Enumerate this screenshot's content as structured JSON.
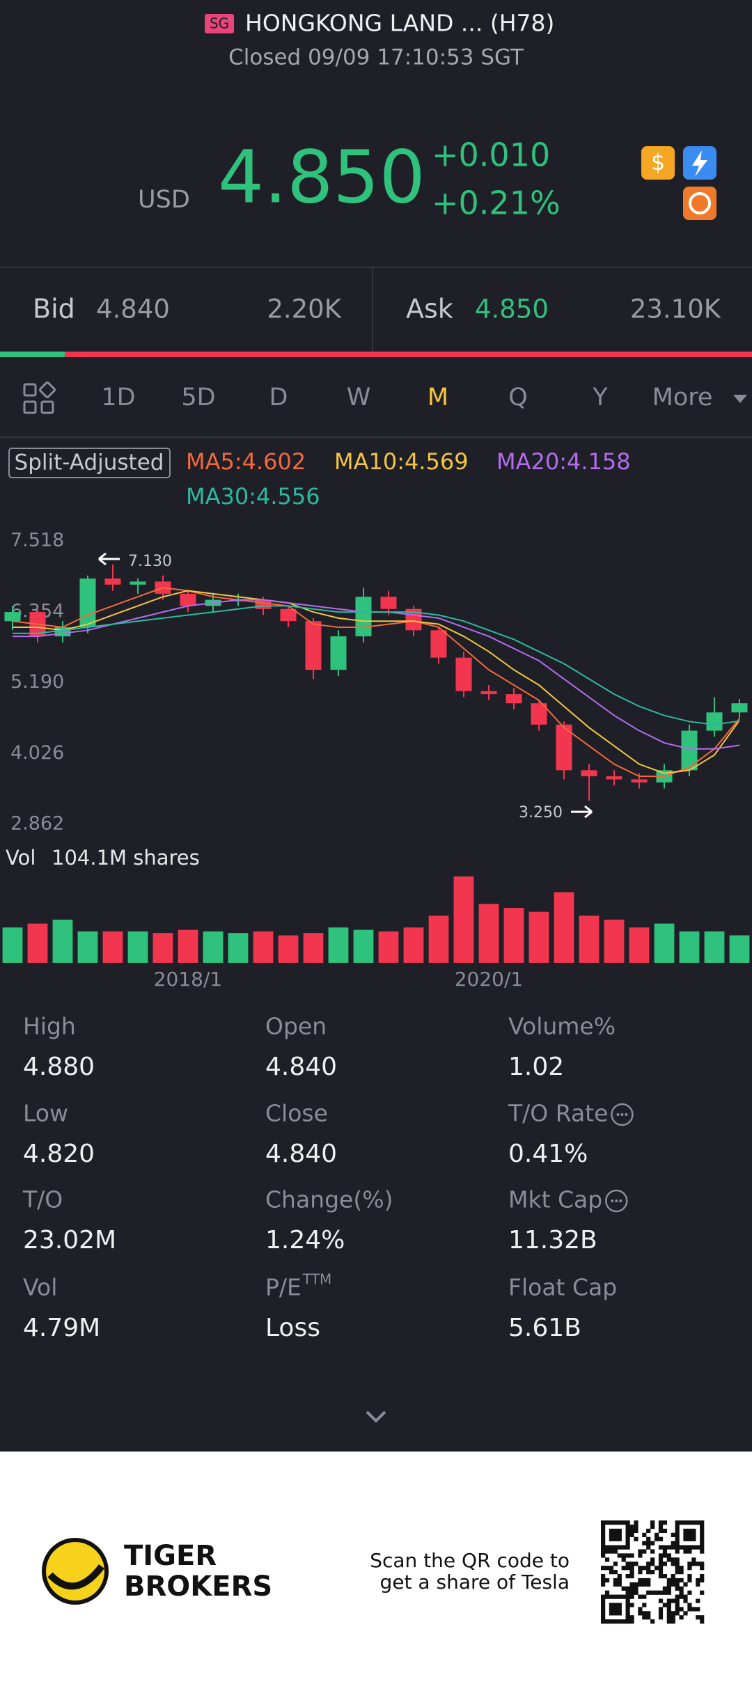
{
  "header": {
    "badge": "SG",
    "title": "HONGKONG LAND ... (H78)",
    "status": "Closed 09/09 17:10:53 SGT"
  },
  "quote": {
    "currency": "USD",
    "price": "4.850",
    "change": "+0.010",
    "change_pct": "+0.21%"
  },
  "bid_ask": {
    "bid_label": "Bid",
    "bid_price": "4.840",
    "bid_size": "2.20K",
    "ask_label": "Ask",
    "ask_price": "4.850",
    "ask_size": "23.10K"
  },
  "tabs": [
    "1D",
    "5D",
    "D",
    "W",
    "M",
    "Q",
    "Y",
    "More"
  ],
  "active_tab": 4,
  "chart_data": {
    "type": "candlestick",
    "adjust_label": "Split-Adjusted",
    "up_color": "#2fc27c",
    "down_color": "#f2364f",
    "categories": [
      null,
      null,
      null,
      null,
      null,
      null,
      null,
      "2018/1",
      null,
      null,
      null,
      null,
      null,
      null,
      null,
      null,
      null,
      null,
      null,
      "2020/1",
      null,
      null,
      null,
      null,
      null,
      null,
      null,
      null,
      null,
      null
    ],
    "open": [
      6.2,
      6.35,
      5.95,
      6.1,
      6.9,
      6.8,
      6.85,
      6.65,
      6.45,
      6.55,
      6.55,
      6.4,
      6.2,
      5.4,
      5.95,
      6.6,
      6.4,
      6.05,
      5.6,
      5.05,
      5.0,
      4.85,
      4.5,
      3.75,
      3.65,
      3.6,
      3.55,
      3.75,
      4.4,
      4.7
    ],
    "high": [
      6.45,
      6.4,
      6.2,
      6.95,
      7.13,
      6.9,
      6.95,
      6.7,
      6.65,
      6.65,
      6.6,
      6.45,
      6.25,
      6.05,
      6.75,
      6.7,
      6.45,
      6.1,
      5.7,
      5.15,
      5.1,
      4.9,
      4.55,
      3.85,
      3.75,
      3.7,
      3.85,
      4.5,
      4.95,
      4.92
    ],
    "low": [
      6.05,
      5.85,
      5.85,
      6.0,
      6.7,
      6.65,
      6.55,
      6.35,
      6.35,
      6.45,
      6.3,
      6.1,
      5.25,
      5.3,
      5.85,
      6.3,
      5.95,
      5.5,
      4.95,
      4.9,
      4.75,
      4.4,
      3.6,
      3.25,
      3.5,
      3.45,
      3.45,
      3.65,
      4.3,
      4.6
    ],
    "close": [
      6.35,
      5.95,
      6.1,
      6.9,
      6.8,
      6.85,
      6.65,
      6.45,
      6.55,
      6.55,
      6.4,
      6.2,
      5.4,
      5.95,
      6.6,
      6.4,
      6.05,
      5.6,
      5.05,
      5.0,
      4.85,
      4.5,
      3.75,
      3.65,
      3.6,
      3.55,
      3.75,
      4.4,
      4.7,
      4.85
    ],
    "high_annotation": "7.130",
    "low_annotation": "3.250",
    "series": [
      {
        "name": "MA5:4.602",
        "color": "#f5683a",
        "values": [
          6.2,
          6.15,
          6.1,
          6.3,
          6.45,
          6.6,
          6.75,
          6.7,
          6.6,
          6.55,
          6.5,
          6.45,
          6.15,
          6.1,
          6.1,
          6.15,
          6.2,
          6.1,
          5.75,
          5.4,
          5.15,
          4.9,
          4.45,
          4.15,
          3.85,
          3.65,
          3.65,
          3.8,
          4.1,
          4.6
        ]
      },
      {
        "name": "MA10:4.569",
        "color": "#f5c540",
        "values": [
          6.1,
          6.1,
          6.05,
          6.15,
          6.3,
          6.45,
          6.6,
          6.7,
          6.65,
          6.6,
          6.55,
          6.5,
          6.35,
          6.25,
          6.2,
          6.2,
          6.2,
          6.15,
          5.95,
          5.7,
          5.4,
          5.15,
          4.8,
          4.45,
          4.15,
          3.85,
          3.7,
          3.75,
          4.0,
          4.57
        ]
      },
      {
        "name": "MA20:4.158",
        "color": "#b46cf0",
        "values": [
          5.95,
          5.95,
          6.0,
          6.05,
          6.15,
          6.25,
          6.35,
          6.45,
          6.5,
          6.55,
          6.55,
          6.5,
          6.45,
          6.4,
          6.35,
          6.35,
          6.3,
          6.25,
          6.1,
          5.95,
          5.75,
          5.55,
          5.25,
          4.95,
          4.65,
          4.4,
          4.2,
          4.1,
          4.1,
          4.16
        ]
      },
      {
        "name": "MA30:4.556",
        "color": "#2db9a0",
        "values": [
          6.0,
          6.0,
          6.05,
          6.1,
          6.15,
          6.2,
          6.25,
          6.3,
          6.35,
          6.4,
          6.45,
          6.45,
          6.4,
          6.35,
          6.35,
          6.35,
          6.35,
          6.3,
          6.2,
          6.05,
          5.9,
          5.7,
          5.5,
          5.25,
          5.0,
          4.8,
          4.65,
          4.55,
          4.5,
          4.56
        ]
      }
    ],
    "ylim": [
      2.862,
      7.518
    ],
    "yticks": [
      7.518,
      6.354,
      {
        "value": 5.19,
        "label": "5.190"
      },
      4.026,
      2.862
    ],
    "volume": {
      "label": "Vol",
      "total": "104.1M shares",
      "values": [
        45,
        50,
        55,
        40,
        40,
        40,
        38,
        42,
        40,
        38,
        40,
        35,
        38,
        45,
        42,
        40,
        45,
        60,
        110,
        75,
        70,
        65,
        90,
        60,
        55,
        45,
        50,
        40,
        40,
        35
      ]
    }
  },
  "stats": [
    {
      "label": "High",
      "value": "4.880"
    },
    {
      "label": "Open",
      "value": "4.840"
    },
    {
      "label": "Volume%",
      "value": "1.02"
    },
    {
      "label": "Low",
      "value": "4.820"
    },
    {
      "label": "Close",
      "value": "4.840"
    },
    {
      "label": "T/O Rate",
      "value": "0.41%",
      "info": true
    },
    {
      "label": "T/O",
      "value": "23.02M"
    },
    {
      "label": "Change(%)",
      "value": "1.24%"
    },
    {
      "label": "Mkt Cap",
      "value": "11.32B",
      "info": true
    },
    {
      "label": "Vol",
      "value": "4.79M"
    },
    {
      "label": "P/E",
      "sup": "TTM",
      "value": "Loss"
    },
    {
      "label": "Float Cap",
      "value": "5.61B"
    }
  ],
  "footer": {
    "brand": [
      "TIGER",
      "BROKERS"
    ],
    "promo": [
      "Scan the QR code to",
      "get a share of Tesla"
    ]
  }
}
